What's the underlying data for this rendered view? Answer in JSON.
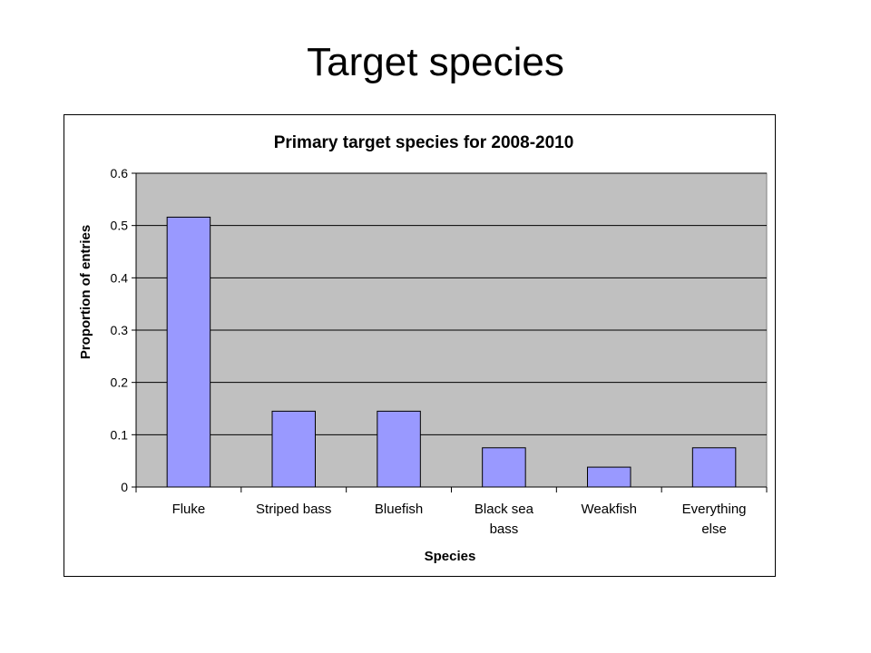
{
  "slide": {
    "title": "Target species"
  },
  "chart_data": {
    "type": "bar",
    "title": "Primary target species for 2008-2010",
    "xlabel": "Species",
    "ylabel": "Proportion of entries",
    "categories": [
      [
        "Fluke"
      ],
      [
        "Striped bass"
      ],
      [
        "Bluefish"
      ],
      [
        "Black sea",
        "bass"
      ],
      [
        "Weakfish"
      ],
      [
        "Everything",
        "else"
      ]
    ],
    "values": [
      0.516,
      0.145,
      0.145,
      0.075,
      0.038,
      0.075
    ],
    "ylim": [
      0,
      0.6
    ],
    "yticks": [
      "0",
      "0.1",
      "0.2",
      "0.3",
      "0.4",
      "0.5",
      "0.6"
    ],
    "grid": true,
    "legend": "none",
    "colors": {
      "bar": "#9999ff",
      "plot_bg": "#c0c0c0"
    }
  }
}
